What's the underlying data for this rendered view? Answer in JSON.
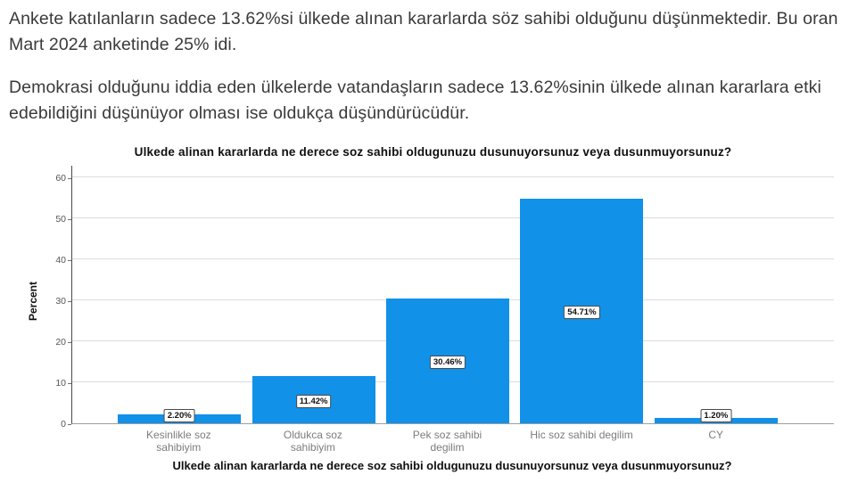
{
  "intro": {
    "p1": "Ankete katılanların sadece 13.62%si ülkede alınan kararlarda söz sahibi olduğunu düşünmektedir. Bu oran Mart 2024 anketinde 25% idi.",
    "p2": "Demokrasi olduğunu iddia eden ülkelerde vatandaşların sadece 13.62%sinin ülkede alınan kararlara etki edebildiğini düşünüyor olması ise oldukça düşündürücüdür."
  },
  "chart_data": {
    "type": "bar",
    "title": "Ulkede alinan kararlarda ne derece soz sahibi oldugunuzu dusunuyorsunuz veya dusunmuyorsunuz?",
    "xlabel": "Ulkede alinan kararlarda ne derece soz sahibi oldugunuzu dusunuyorsunuz veya dusunmuyorsunuz?",
    "ylabel": "Percent",
    "categories": [
      "Kesinlikle soz sahibiyim",
      "Oldukca soz sahibiyim",
      "Pek soz sahibi degilim",
      "Hic soz sahibi degilim",
      "CY"
    ],
    "values": [
      2.2,
      11.42,
      30.46,
      54.71,
      1.2
    ],
    "data_labels": [
      "2.20%",
      "11.42%",
      "30.46%",
      "54.71%",
      "1.20%"
    ],
    "yticks": [
      0,
      10,
      20,
      30,
      40,
      50,
      60
    ],
    "ylim": [
      0,
      60
    ],
    "grid": "horizontal",
    "legend": "none",
    "bar_color": "#1191e8"
  }
}
